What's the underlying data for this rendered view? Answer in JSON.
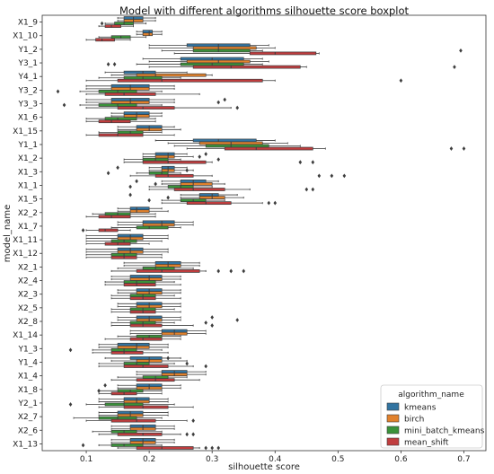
{
  "chart_data": {
    "type": "boxplot",
    "orientation": "horizontal",
    "title": "Model with different algorithms silhouette score boxplot",
    "xlabel": "silhouette score",
    "ylabel": "model_name",
    "xlim": [
      0.03,
      0.735
    ],
    "xticks": [
      0.1,
      0.2,
      0.3,
      0.4,
      0.5,
      0.6,
      0.7
    ],
    "grid": false,
    "legend": {
      "title": "algorithm_name",
      "placement": "lower-right"
    },
    "series": [
      {
        "name": "kmeans",
        "color": "#3274a1"
      },
      {
        "name": "birch",
        "color": "#e1812c"
      },
      {
        "name": "mini_batch_kmeans",
        "color": "#3a923a"
      },
      {
        "name": "mean_shift",
        "color": "#c03d3e"
      }
    ],
    "categories": [
      "X1_9",
      "X1_10",
      "Y1_2",
      "Y3_1",
      "Y4_1",
      "Y3_2",
      "Y3_3",
      "X1_6",
      "X1_15",
      "Y1_1",
      "X1_2",
      "X1_3",
      "X1_1",
      "X1_5",
      "X2_2",
      "X1_7",
      "X1_11",
      "X1_12",
      "X2_1",
      "X2_4",
      "X2_3",
      "X2_5",
      "X2_8",
      "X1_14",
      "Y1_3",
      "Y1_4",
      "X1_4",
      "X1_8",
      "Y2_1",
      "X2_7",
      "X2_6",
      "X1_13"
    ],
    "boxes": [
      [
        [
          0.15,
          0.16,
          0.175,
          0.19,
          0.21,
          []
        ],
        [
          0.15,
          0.16,
          0.175,
          0.19,
          0.21,
          []
        ],
        [
          0.13,
          0.145,
          0.16,
          0.175,
          0.195,
          [
            0.125
          ]
        ],
        [
          0.12,
          0.13,
          0.14,
          0.155,
          0.175,
          []
        ]
      ],
      [
        [
          0.18,
          0.19,
          0.2,
          0.205,
          0.22,
          []
        ],
        [
          0.18,
          0.19,
          0.2,
          0.205,
          0.22,
          []
        ],
        [
          0.12,
          0.14,
          0.155,
          0.17,
          0.195,
          []
        ],
        [
          0.1,
          0.115,
          0.125,
          0.145,
          0.17,
          []
        ]
      ],
      [
        [
          0.2,
          0.26,
          0.31,
          0.36,
          0.39,
          []
        ],
        [
          0.2,
          0.27,
          0.31,
          0.37,
          0.4,
          []
        ],
        [
          0.22,
          0.27,
          0.31,
          0.36,
          0.38,
          [
            0.695
          ]
        ],
        [
          0.24,
          0.36,
          0.4,
          0.465,
          0.47,
          []
        ]
      ],
      [
        [
          0.19,
          0.25,
          0.3,
          0.35,
          0.38,
          []
        ],
        [
          0.2,
          0.26,
          0.31,
          0.36,
          0.39,
          []
        ],
        [
          0.18,
          0.25,
          0.3,
          0.35,
          0.38,
          [
            0.135,
            0.145
          ]
        ],
        [
          0.2,
          0.27,
          0.33,
          0.44,
          0.45,
          [
            0.685
          ]
        ]
      ],
      [
        [
          0.13,
          0.16,
          0.19,
          0.21,
          0.26,
          []
        ],
        [
          0.14,
          0.18,
          0.21,
          0.29,
          0.3,
          []
        ],
        [
          0.12,
          0.16,
          0.19,
          0.22,
          0.25,
          []
        ],
        [
          0.1,
          0.15,
          0.22,
          0.38,
          0.4,
          [
            0.6
          ]
        ]
      ],
      [
        [
          0.1,
          0.14,
          0.17,
          0.2,
          0.24,
          []
        ],
        [
          0.1,
          0.14,
          0.17,
          0.2,
          0.24,
          []
        ],
        [
          0.09,
          0.12,
          0.15,
          0.18,
          0.22,
          [
            0.055
          ]
        ],
        [
          0.1,
          0.13,
          0.16,
          0.21,
          0.28,
          []
        ]
      ],
      [
        [
          0.1,
          0.14,
          0.17,
          0.2,
          0.24,
          [
            0.32
          ]
        ],
        [
          0.1,
          0.14,
          0.17,
          0.2,
          0.24,
          [
            0.31
          ]
        ],
        [
          0.09,
          0.12,
          0.15,
          0.18,
          0.22,
          [
            0.065
          ]
        ],
        [
          0.1,
          0.15,
          0.19,
          0.24,
          0.33,
          [
            0.34
          ]
        ]
      ],
      [
        [
          0.14,
          0.16,
          0.18,
          0.2,
          0.22,
          []
        ],
        [
          0.14,
          0.16,
          0.18,
          0.2,
          0.22,
          []
        ],
        [
          0.1,
          0.13,
          0.15,
          0.18,
          0.21,
          []
        ],
        [
          0.1,
          0.12,
          0.14,
          0.17,
          0.21,
          []
        ]
      ],
      [
        [
          0.15,
          0.18,
          0.2,
          0.22,
          0.24,
          []
        ],
        [
          0.15,
          0.18,
          0.2,
          0.22,
          0.25,
          []
        ],
        [
          0.12,
          0.15,
          0.17,
          0.19,
          0.22,
          []
        ],
        [
          0.1,
          0.12,
          0.15,
          0.19,
          0.24,
          []
        ]
      ],
      [
        [
          0.21,
          0.27,
          0.31,
          0.37,
          0.4,
          []
        ],
        [
          0.23,
          0.28,
          0.33,
          0.38,
          0.42,
          []
        ],
        [
          0.24,
          0.29,
          0.33,
          0.39,
          0.44,
          []
        ],
        [
          0.26,
          0.32,
          0.37,
          0.46,
          0.48,
          [
            0.68,
            0.7
          ]
        ]
      ],
      [
        [
          0.19,
          0.21,
          0.23,
          0.24,
          0.26,
          [
            0.29
          ]
        ],
        [
          0.19,
          0.21,
          0.23,
          0.24,
          0.27,
          [
            0.28
          ]
        ],
        [
          0.16,
          0.19,
          0.21,
          0.23,
          0.25,
          [
            0.31
          ]
        ],
        [
          0.16,
          0.19,
          0.23,
          0.29,
          0.3,
          [
            0.44,
            0.46
          ]
        ]
      ],
      [
        [
          0.2,
          0.22,
          0.23,
          0.24,
          0.26,
          [
            0.15
          ]
        ],
        [
          0.2,
          0.22,
          0.23,
          0.24,
          0.27,
          [
            0.26
          ]
        ],
        [
          0.18,
          0.2,
          0.22,
          0.23,
          0.25,
          [
            0.135
          ]
        ],
        [
          0.17,
          0.21,
          0.23,
          0.27,
          0.3,
          [
            0.47,
            0.49,
            0.51
          ]
        ]
      ],
      [
        [
          0.22,
          0.25,
          0.27,
          0.29,
          0.31,
          [
            0.18
          ]
        ],
        [
          0.22,
          0.25,
          0.27,
          0.3,
          0.32,
          [
            0.21
          ]
        ],
        [
          0.2,
          0.23,
          0.25,
          0.27,
          0.3,
          [
            0.17
          ]
        ],
        [
          0.2,
          0.24,
          0.27,
          0.32,
          0.36,
          [
            0.45,
            0.46
          ]
        ]
      ],
      [
        [
          0.25,
          0.28,
          0.3,
          0.31,
          0.34,
          [
            0.17
          ]
        ],
        [
          0.25,
          0.28,
          0.3,
          0.32,
          0.35,
          [
            0.23
          ]
        ],
        [
          0.22,
          0.25,
          0.27,
          0.29,
          0.32,
          [
            0.2
          ]
        ],
        [
          0.22,
          0.26,
          0.29,
          0.33,
          0.38,
          [
            0.39,
            0.4
          ]
        ]
      ],
      [
        [
          0.15,
          0.17,
          0.18,
          0.2,
          0.22,
          []
        ],
        [
          0.15,
          0.17,
          0.18,
          0.2,
          0.23,
          []
        ],
        [
          0.11,
          0.13,
          0.15,
          0.17,
          0.21,
          []
        ],
        [
          0.1,
          0.12,
          0.14,
          0.17,
          0.21,
          []
        ]
      ],
      [
        [
          0.15,
          0.19,
          0.22,
          0.24,
          0.27,
          []
        ],
        [
          0.15,
          0.19,
          0.22,
          0.24,
          0.27,
          []
        ],
        [
          0.14,
          0.18,
          0.2,
          0.23,
          0.25,
          []
        ],
        [
          0.1,
          0.12,
          0.13,
          0.15,
          0.17,
          [
            0.095
          ]
        ]
      ],
      [
        [
          0.1,
          0.15,
          0.17,
          0.19,
          0.23,
          []
        ],
        [
          0.1,
          0.15,
          0.17,
          0.19,
          0.23,
          []
        ],
        [
          0.1,
          0.14,
          0.16,
          0.18,
          0.22,
          []
        ],
        [
          0.1,
          0.13,
          0.15,
          0.17,
          0.2,
          []
        ]
      ],
      [
        [
          0.1,
          0.15,
          0.17,
          0.19,
          0.23,
          []
        ],
        [
          0.1,
          0.15,
          0.17,
          0.19,
          0.23,
          []
        ],
        [
          0.1,
          0.14,
          0.16,
          0.18,
          0.22,
          []
        ],
        [
          0.1,
          0.14,
          0.16,
          0.18,
          0.22,
          []
        ]
      ],
      [
        [
          0.16,
          0.21,
          0.23,
          0.25,
          0.28,
          []
        ],
        [
          0.16,
          0.21,
          0.23,
          0.25,
          0.28,
          []
        ],
        [
          0.15,
          0.19,
          0.21,
          0.24,
          0.27,
          []
        ],
        [
          0.14,
          0.18,
          0.22,
          0.28,
          0.29,
          [
            0.31,
            0.33,
            0.35
          ]
        ]
      ],
      [
        [
          0.14,
          0.17,
          0.2,
          0.22,
          0.25,
          []
        ],
        [
          0.14,
          0.17,
          0.2,
          0.22,
          0.25,
          []
        ],
        [
          0.13,
          0.16,
          0.18,
          0.21,
          0.24,
          []
        ],
        [
          0.13,
          0.16,
          0.18,
          0.21,
          0.25,
          []
        ]
      ],
      [
        [
          0.15,
          0.18,
          0.2,
          0.22,
          0.25,
          []
        ],
        [
          0.15,
          0.18,
          0.2,
          0.22,
          0.25,
          []
        ],
        [
          0.14,
          0.17,
          0.19,
          0.21,
          0.24,
          []
        ],
        [
          0.14,
          0.17,
          0.19,
          0.21,
          0.25,
          []
        ]
      ],
      [
        [
          0.15,
          0.18,
          0.2,
          0.22,
          0.25,
          []
        ],
        [
          0.15,
          0.18,
          0.2,
          0.22,
          0.25,
          []
        ],
        [
          0.14,
          0.17,
          0.19,
          0.21,
          0.24,
          []
        ],
        [
          0.14,
          0.17,
          0.19,
          0.21,
          0.25,
          []
        ]
      ],
      [
        [
          0.15,
          0.18,
          0.2,
          0.22,
          0.25,
          [
            0.3
          ]
        ],
        [
          0.15,
          0.18,
          0.2,
          0.22,
          0.25,
          [
            0.34
          ]
        ],
        [
          0.14,
          0.17,
          0.19,
          0.21,
          0.24,
          [
            0.29
          ]
        ],
        [
          0.14,
          0.17,
          0.19,
          0.22,
          0.27,
          [
            0.3
          ]
        ]
      ],
      [
        [
          0.17,
          0.22,
          0.24,
          0.26,
          0.29,
          []
        ],
        [
          0.17,
          0.22,
          0.24,
          0.26,
          0.29,
          []
        ],
        [
          0.15,
          0.18,
          0.2,
          0.22,
          0.25,
          []
        ],
        [
          0.13,
          0.17,
          0.19,
          0.22,
          0.25,
          []
        ]
      ],
      [
        [
          0.12,
          0.15,
          0.18,
          0.2,
          0.23,
          []
        ],
        [
          0.12,
          0.15,
          0.18,
          0.2,
          0.23,
          []
        ],
        [
          0.11,
          0.14,
          0.16,
          0.18,
          0.22,
          [
            0.075
          ]
        ],
        [
          0.11,
          0.14,
          0.16,
          0.19,
          0.23,
          []
        ]
      ],
      [
        [
          0.13,
          0.17,
          0.2,
          0.22,
          0.25,
          [
            0.23
          ]
        ],
        [
          0.14,
          0.18,
          0.2,
          0.22,
          0.26,
          []
        ],
        [
          0.12,
          0.16,
          0.18,
          0.2,
          0.24,
          [
            0.26
          ]
        ],
        [
          0.12,
          0.16,
          0.19,
          0.23,
          0.27,
          [
            0.29
          ]
        ]
      ],
      [
        [
          0.18,
          0.22,
          0.24,
          0.26,
          0.29,
          []
        ],
        [
          0.18,
          0.22,
          0.24,
          0.26,
          0.29,
          []
        ],
        [
          0.15,
          0.19,
          0.21,
          0.23,
          0.26,
          []
        ],
        [
          0.14,
          0.18,
          0.21,
          0.24,
          0.28,
          []
        ]
      ],
      [
        [
          0.15,
          0.18,
          0.2,
          0.22,
          0.25,
          [
            0.13
          ]
        ],
        [
          0.15,
          0.18,
          0.2,
          0.22,
          0.25,
          []
        ],
        [
          0.12,
          0.15,
          0.17,
          0.19,
          0.22,
          [
            0.12
          ]
        ],
        [
          0.12,
          0.14,
          0.16,
          0.18,
          0.22,
          []
        ]
      ],
      [
        [
          0.12,
          0.16,
          0.18,
          0.2,
          0.23,
          []
        ],
        [
          0.12,
          0.16,
          0.18,
          0.2,
          0.23,
          []
        ],
        [
          0.1,
          0.13,
          0.16,
          0.19,
          0.24,
          [
            0.075
          ]
        ],
        [
          0.12,
          0.16,
          0.19,
          0.23,
          0.27,
          []
        ]
      ],
      [
        [
          0.12,
          0.15,
          0.17,
          0.19,
          0.23,
          []
        ],
        [
          0.12,
          0.15,
          0.17,
          0.19,
          0.23,
          []
        ],
        [
          0.08,
          0.12,
          0.15,
          0.18,
          0.22,
          []
        ],
        [
          0.1,
          0.14,
          0.18,
          0.21,
          0.26,
          [
            0.27
          ]
        ]
      ],
      [
        [
          0.14,
          0.17,
          0.19,
          0.21,
          0.24,
          []
        ],
        [
          0.14,
          0.17,
          0.19,
          0.21,
          0.24,
          []
        ],
        [
          0.11,
          0.14,
          0.16,
          0.18,
          0.22,
          []
        ],
        [
          0.12,
          0.15,
          0.19,
          0.22,
          0.25,
          [
            0.26,
            0.27
          ]
        ]
      ],
      [
        [
          0.14,
          0.17,
          0.19,
          0.21,
          0.24,
          []
        ],
        [
          0.14,
          0.17,
          0.19,
          0.21,
          0.24,
          []
        ],
        [
          0.12,
          0.14,
          0.16,
          0.19,
          0.22,
          [
            0.095
          ]
        ],
        [
          0.15,
          0.18,
          0.22,
          0.27,
          0.28,
          [
            0.29,
            0.3,
            0.31
          ]
        ]
      ]
    ]
  }
}
